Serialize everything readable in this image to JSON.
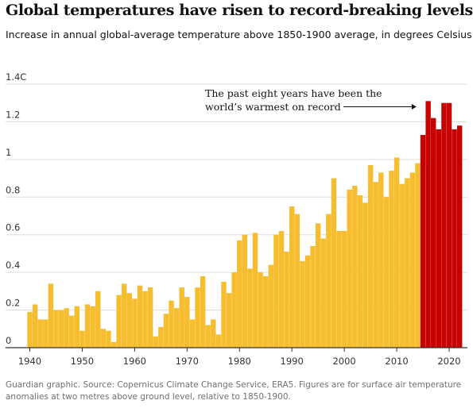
{
  "title": "Global temperatures have risen to record-breaking levels",
  "subtitle": "Increase in annual global-average temperature above 1850-1900 average, in degrees Celsius",
  "footer": "Guardian graphic. Source: Copernicus Climate Change Service, ERA5. Figures are for surface air temperature anomalies at two metres above ground level, relative to 1850-1900.",
  "colors": {
    "normal": "#f6bd2f",
    "recent": "#c70000",
    "grid": "#dcdcdc",
    "axis": "#333333"
  },
  "chart_data": {
    "type": "bar",
    "title": "Global temperatures have risen to record-breaking levels",
    "subtitle": "Increase in annual global-average temperature above 1850-1900 average, in degrees Celsius",
    "xlabel": "",
    "ylabel": "",
    "ylim": [
      0,
      1.4
    ],
    "xlim": [
      1940,
      2022
    ],
    "yticks": [
      0,
      0.2,
      0.4,
      0.6,
      0.8,
      1,
      1.2,
      1.4
    ],
    "ytick_labels": [
      "0",
      "0.2",
      "0.4",
      "0.6",
      "0.8",
      "1",
      "1.2",
      "1.4C"
    ],
    "xticks": [
      1940,
      1950,
      1960,
      1970,
      1980,
      1990,
      2000,
      2010,
      2020
    ],
    "xtick_labels": [
      "1940",
      "1950",
      "1960",
      "1970",
      "1980",
      "1990",
      "2000",
      "2010",
      "2020"
    ],
    "grid": true,
    "highlight_from": 2015,
    "annotation": {
      "lines": [
        "The past eight years have been the",
        "world’s warmest on record"
      ],
      "arrow_to_year": 2015,
      "value_level": 1.25
    },
    "years": [
      1940,
      1941,
      1942,
      1943,
      1944,
      1945,
      1946,
      1947,
      1948,
      1949,
      1950,
      1951,
      1952,
      1953,
      1954,
      1955,
      1956,
      1957,
      1958,
      1959,
      1960,
      1961,
      1962,
      1963,
      1964,
      1965,
      1966,
      1967,
      1968,
      1969,
      1970,
      1971,
      1972,
      1973,
      1974,
      1975,
      1976,
      1977,
      1978,
      1979,
      1980,
      1981,
      1982,
      1983,
      1984,
      1985,
      1986,
      1987,
      1988,
      1989,
      1990,
      1991,
      1992,
      1993,
      1994,
      1995,
      1996,
      1997,
      1998,
      1999,
      2000,
      2001,
      2002,
      2003,
      2004,
      2005,
      2006,
      2007,
      2008,
      2009,
      2010,
      2011,
      2012,
      2013,
      2014,
      2015,
      2016,
      2017,
      2018,
      2019,
      2020,
      2021,
      2022
    ],
    "values": [
      0.19,
      0.23,
      0.15,
      0.15,
      0.34,
      0.2,
      0.2,
      0.21,
      0.17,
      0.22,
      0.09,
      0.23,
      0.22,
      0.3,
      0.1,
      0.09,
      0.03,
      0.28,
      0.34,
      0.29,
      0.26,
      0.33,
      0.3,
      0.32,
      0.06,
      0.11,
      0.18,
      0.25,
      0.21,
      0.32,
      0.27,
      0.15,
      0.32,
      0.38,
      0.12,
      0.15,
      0.07,
      0.35,
      0.29,
      0.4,
      0.57,
      0.6,
      0.42,
      0.61,
      0.4,
      0.38,
      0.44,
      0.6,
      0.62,
      0.51,
      0.75,
      0.71,
      0.46,
      0.49,
      0.54,
      0.66,
      0.58,
      0.71,
      0.9,
      0.62,
      0.62,
      0.84,
      0.86,
      0.81,
      0.77,
      0.97,
      0.88,
      0.93,
      0.8,
      0.94,
      1.01,
      0.87,
      0.9,
      0.93,
      0.98,
      1.13,
      1.31,
      1.22,
      1.16,
      1.3,
      1.3,
      1.16,
      1.18
    ]
  }
}
